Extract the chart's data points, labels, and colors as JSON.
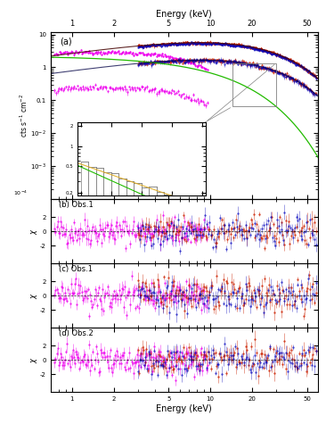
{
  "title_top": "Energy (keV)",
  "title_bottom": "Energy (keV)",
  "ylabel_a": "cts s$^{-1}$ cm$^{-2}$",
  "panel_a_label": "(a)",
  "panel_b_label": "(b) Obs.1",
  "panel_c_label": "(c) Obs.1",
  "panel_d_label": "(d) Obs.2",
  "energy_min": 0.7,
  "energy_max": 60,
  "colors": {
    "swift_xrt": "#EE00EE",
    "nustar_fpma": "#CC2200",
    "nustar_fpmb": "#0000BB",
    "model_green": "#22BB00",
    "model_orange": "#DDAA00",
    "model_gray": "#888888",
    "background": "#EFEFEF"
  }
}
